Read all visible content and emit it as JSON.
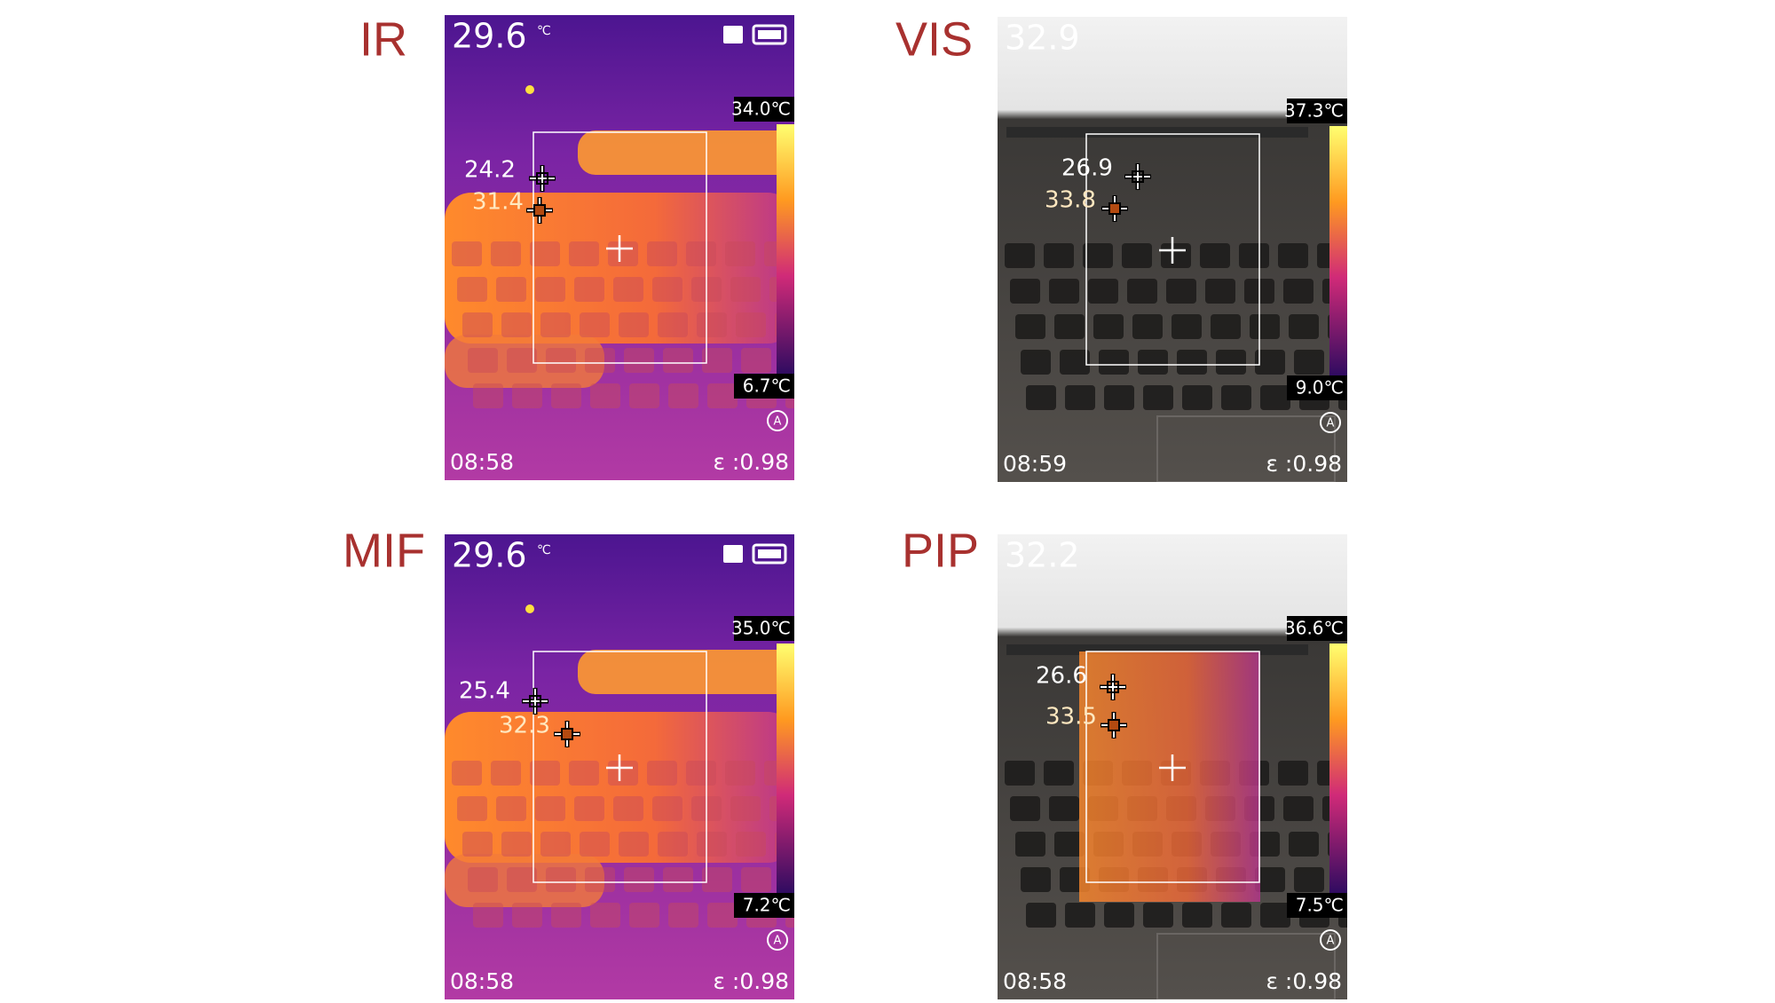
{
  "panels": [
    {
      "mode": "IR",
      "temperature": "29.6",
      "unit": "℃",
      "scale_max": "34.0℃",
      "scale_min": "6.7℃",
      "spots": [
        "24.2",
        "31.4"
      ],
      "time": "08:58",
      "emissivity": "ɛ :0.98"
    },
    {
      "mode": "VIS",
      "temperature": "32.9",
      "scale_max": "37.3℃",
      "scale_min": "9.0℃",
      "spots": [
        "26.9",
        "33.8"
      ],
      "time": "08:59",
      "emissivity": "ɛ :0.98"
    },
    {
      "mode": "MIF",
      "temperature": "29.6",
      "unit": "℃",
      "scale_max": "35.0℃",
      "scale_min": "7.2℃",
      "spots": [
        "25.4",
        "32.3"
      ],
      "time": "08:58",
      "emissivity": "ɛ :0.98"
    },
    {
      "mode": "PIP",
      "temperature": "32.2",
      "scale_max": "36.6℃",
      "scale_min": "7.5℃",
      "spots": [
        "26.6",
        "33.5"
      ],
      "time": "08:58",
      "emissivity": "ɛ :0.98"
    }
  ]
}
